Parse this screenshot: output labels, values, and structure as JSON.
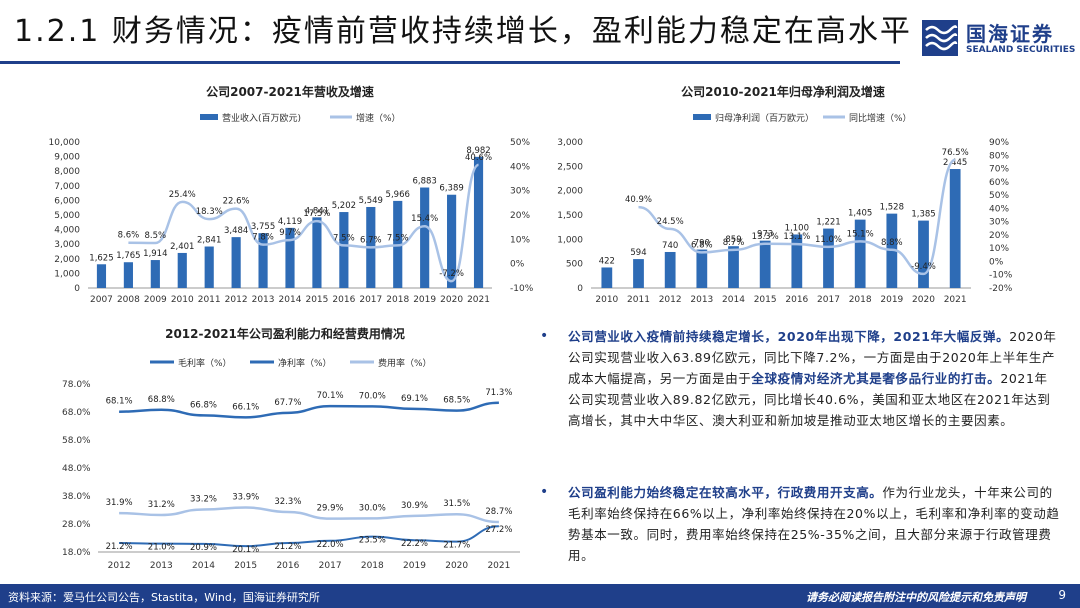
{
  "header": {
    "title": "1.2.1 财务情况：疫情前营收持续增长，盈利能力稳定在高水平",
    "logo_cn": "国海证券",
    "logo_en": "SEALAND SECURITIES"
  },
  "colors": {
    "bar": "#2e6bb5",
    "line": "#a9c2e6",
    "accent": "#1f3f8a"
  },
  "chart_data": [
    {
      "type": "bar",
      "title": "公司2007-2021年营收及增速",
      "series": [
        {
          "name": "营业收入(百万欧元)",
          "values": [
            1625,
            1765,
            1914,
            2401,
            2841,
            3484,
            3755,
            4119,
            4841,
            5202,
            5549,
            5966,
            6883,
            6389,
            8982
          ]
        },
        {
          "name": "增速（%）",
          "values": [
            null,
            8.6,
            8.5,
            25.4,
            18.3,
            22.6,
            7.8,
            9.7,
            17.5,
            7.5,
            6.7,
            7.5,
            15.4,
            -7.2,
            40.6
          ]
        }
      ],
      "categories": [
        "2007",
        "2008",
        "2009",
        "2010",
        "2011",
        "2012",
        "2013",
        "2014",
        "2015",
        "2016",
        "2017",
        "2018",
        "2019",
        "2020",
        "2021"
      ],
      "bar_labels": [
        "1,625",
        "1,765",
        "1,914",
        "2,401",
        "2,841",
        "3,484",
        "3,755",
        "4,119",
        "4,841",
        "5,202",
        "5,549",
        "5,966",
        "6,883",
        "6,389",
        "8,982"
      ],
      "line_labels": [
        "",
        "8.6%",
        "8.5%",
        "25.4%",
        "18.3%",
        "22.6%",
        "7.8%",
        "9.7%",
        "17.5%",
        "7.5%",
        "6.7%",
        "7.5%",
        "15.4%",
        "-7.2%",
        "40.6%"
      ],
      "y_ticks": [
        "0",
        "1,000",
        "2,000",
        "3,000",
        "4,000",
        "5,000",
        "6,000",
        "7,000",
        "8,000",
        "9,000",
        "10,000"
      ],
      "y2_ticks": [
        "-10%",
        "0%",
        "10%",
        "20%",
        "30%",
        "40%",
        "50%"
      ],
      "ylim": [
        0,
        10000
      ],
      "y2lim": [
        -10,
        50
      ]
    },
    {
      "type": "bar",
      "title": "公司2010-2021年归母净利润及增速",
      "series": [
        {
          "name": "归母净利润（百万欧元）",
          "values": [
            422,
            594,
            740,
            790,
            859,
            973,
            1100,
            1221,
            1405,
            1528,
            1385,
            2445
          ]
        },
        {
          "name": "同比增速（%）",
          "values": [
            null,
            40.9,
            24.5,
            6.8,
            8.7,
            13.3,
            13.1,
            11.0,
            15.1,
            8.8,
            -9.4,
            76.5
          ]
        }
      ],
      "categories": [
        "2010",
        "2011",
        "2012",
        "2013",
        "2014",
        "2015",
        "2016",
        "2017",
        "2018",
        "2019",
        "2020",
        "2021"
      ],
      "bar_labels": [
        "422",
        "594",
        "740",
        "790",
        "859",
        "973",
        "1,100",
        "1,221",
        "1,405",
        "1,528",
        "1,385",
        "2,445"
      ],
      "line_labels": [
        "",
        "40.9%",
        "24.5%",
        "6.8%",
        "8.7%",
        "13.3%",
        "13.1%",
        "11.0%",
        "15.1%",
        "8.8%",
        "-9.4%",
        "76.5%"
      ],
      "y_ticks": [
        "0",
        "500",
        "1,000",
        "1,500",
        "2,000",
        "2,500",
        "3,000"
      ],
      "y2_ticks": [
        "-20%",
        "-10%",
        "0%",
        "10%",
        "20%",
        "30%",
        "40%",
        "50%",
        "60%",
        "70%",
        "80%",
        "90%"
      ],
      "ylim": [
        0,
        3000
      ],
      "y2lim": [
        -20,
        90
      ]
    },
    {
      "type": "line",
      "title": "2012-2021年公司盈利能力和经营费用情况",
      "categories": [
        "2012",
        "2013",
        "2014",
        "2015",
        "2016",
        "2017",
        "2018",
        "2019",
        "2020",
        "2021"
      ],
      "series": [
        {
          "name": "毛利率（%）",
          "values": [
            68.1,
            68.8,
            66.8,
            66.1,
            67.7,
            70.1,
            70.0,
            69.1,
            68.5,
            71.3
          ],
          "labels": [
            "68.1%",
            "68.8%",
            "66.8%",
            "66.1%",
            "67.7%",
            "70.1%",
            "70.0%",
            "69.1%",
            "68.5%",
            "71.3%"
          ]
        },
        {
          "name": "净利率（%）",
          "values": [
            21.2,
            21.0,
            20.9,
            20.1,
            21.2,
            22.0,
            23.5,
            22.2,
            21.7,
            27.2
          ],
          "labels": [
            "21.2%",
            "21.0%",
            "20.9%",
            "20.1%",
            "21.2%",
            "22.0%",
            "23.5%",
            "22.2%",
            "21.7%",
            "27.2%"
          ]
        },
        {
          "name": "费用率（%）",
          "values": [
            31.9,
            31.2,
            33.2,
            33.9,
            32.3,
            29.9,
            30.0,
            30.9,
            31.5,
            28.7
          ],
          "labels": [
            "31.9%",
            "31.2%",
            "33.2%",
            "33.9%",
            "32.3%",
            "29.9%",
            "30.0%",
            "30.9%",
            "31.5%",
            "28.7%"
          ]
        }
      ],
      "y_ticks": [
        "18.0%",
        "28.0%",
        "38.0%",
        "48.0%",
        "58.0%",
        "68.0%",
        "78.0%"
      ],
      "ylim": [
        18,
        78
      ]
    }
  ],
  "bullets": [
    {
      "highlight": "公司营业收入疫情前持续稳定增长，2020年出现下降，2021年大幅反弹。",
      "text_a": "2020年公司实现营业收入63.89亿欧元，同比下降7.2%，一方面是由于2020年上半年生产成本大幅提高，另一方面是由于",
      "highlight_b": "全球疫情对经济尤其是奢侈品行业的打击。",
      "text_b": "2021年公司实现营业收入89.82亿欧元，同比增长40.6%，美国和亚太地区在2021年达到高增长，其中大中华区、澳大利亚和新加坡是推动亚太地区增长的主要因素。"
    },
    {
      "highlight": "公司盈利能力始终稳定在较高水平，行政费用开支高。",
      "text_a": "作为行业龙头，十年来公司的毛利率始终保持在66%以上，净利率始终保持在20%以上，毛利率和净利率的变动趋势基本一致。同时，费用率始终保持在25%-35%之间，且大部分来源于行政管理费用。"
    }
  ],
  "footer": {
    "source": "资料来源：爱马仕公司公告，Stastita，Wind，国海证券研究所",
    "disclaimer": "请务必阅读报告附注中的风险提示和免责声明",
    "page": "9"
  }
}
